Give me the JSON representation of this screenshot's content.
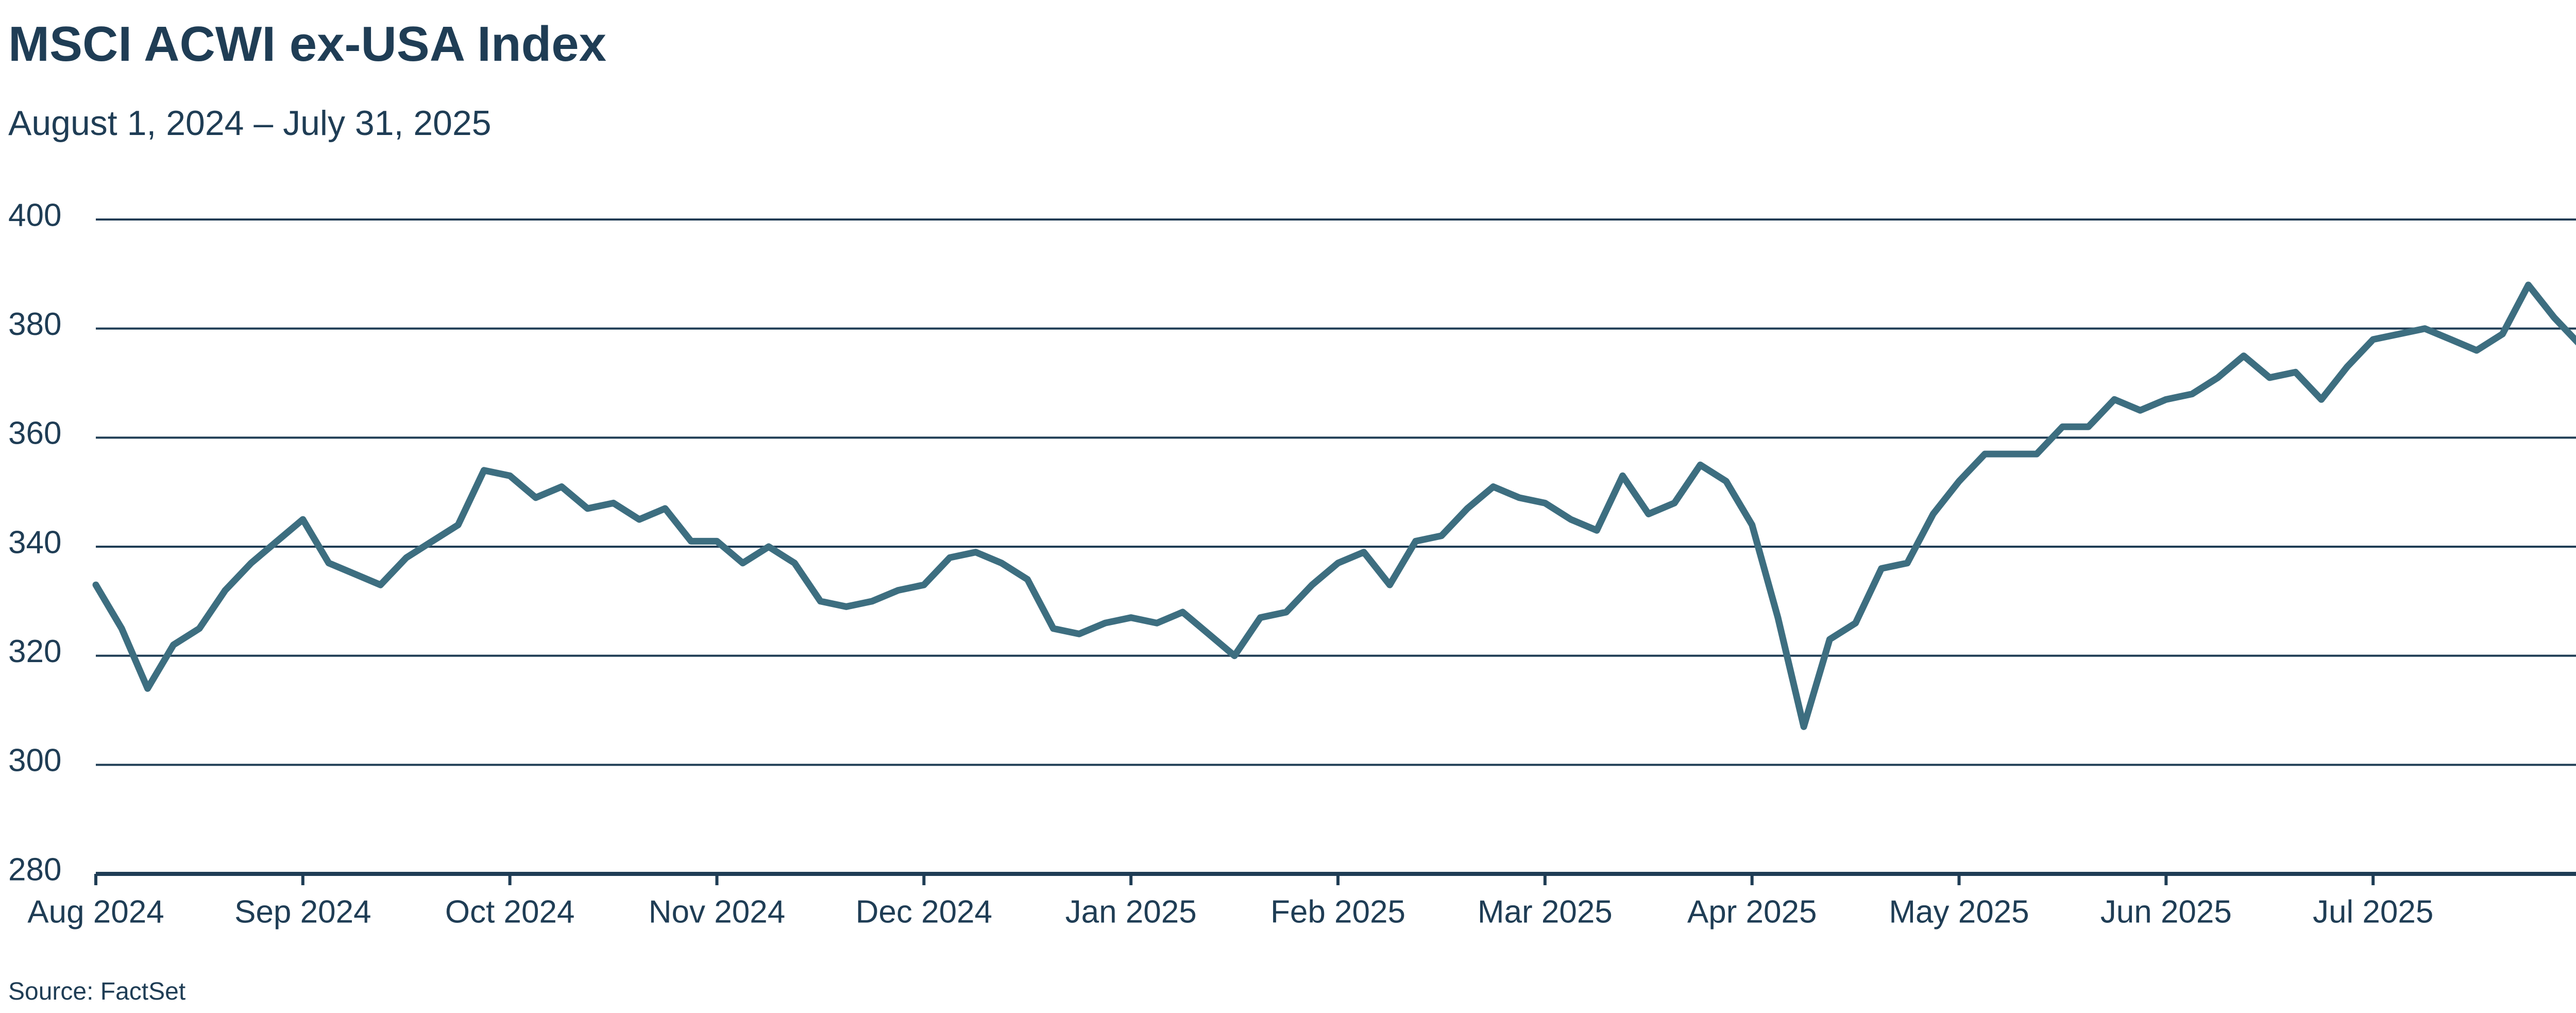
{
  "chart_data": {
    "type": "line",
    "title": "MSCI ACWI ex-USA Index",
    "subtitle": "August 1, 2024 – July 31, 2025",
    "source": "Source: FactSet",
    "categories": [
      "Aug 2024",
      null,
      null,
      null,
      null,
      null,
      null,
      null,
      "Sep 2024",
      null,
      null,
      null,
      null,
      null,
      null,
      null,
      "Oct 2024",
      null,
      null,
      null,
      null,
      null,
      null,
      null,
      "Nov 2024",
      null,
      null,
      null,
      null,
      null,
      null,
      null,
      "Dec 2024",
      null,
      null,
      null,
      null,
      null,
      null,
      null,
      "Jan 2025",
      null,
      null,
      null,
      null,
      null,
      null,
      null,
      "Feb 2025",
      null,
      null,
      null,
      null,
      null,
      null,
      null,
      "Mar 2025",
      null,
      null,
      null,
      null,
      null,
      null,
      null,
      "Apr 2025",
      null,
      null,
      null,
      null,
      null,
      null,
      null,
      "May 2025",
      null,
      null,
      null,
      null,
      null,
      null,
      null,
      "Jun 2025",
      null,
      null,
      null,
      null,
      null,
      null,
      null,
      "Jul 2025",
      null,
      null,
      null,
      null,
      null,
      null,
      null,
      null
    ],
    "values": [
      333,
      325,
      314,
      322,
      325,
      332,
      337,
      341,
      345,
      337,
      335,
      333,
      338,
      341,
      344,
      354,
      353,
      349,
      351,
      347,
      348,
      345,
      347,
      341,
      341,
      337,
      340,
      337,
      330,
      329,
      330,
      332,
      333,
      338,
      339,
      337,
      334,
      325,
      324,
      326,
      327,
      326,
      328,
      324,
      320,
      327,
      328,
      333,
      337,
      339,
      333,
      341,
      342,
      347,
      351,
      349,
      348,
      345,
      343,
      353,
      346,
      348,
      355,
      352,
      344,
      327,
      307,
      323,
      326,
      336,
      337,
      346,
      352,
      357,
      357,
      357,
      362,
      362,
      367,
      365,
      367,
      368,
      371,
      375,
      371,
      372,
      367,
      373,
      378,
      379,
      380,
      378,
      376,
      379,
      388,
      382,
      377
    ],
    "color": "#3d6e80",
    "ylim": [
      280,
      400
    ],
    "yticks": [
      280,
      300,
      320,
      340,
      360,
      380,
      400
    ],
    "grid": true
  }
}
